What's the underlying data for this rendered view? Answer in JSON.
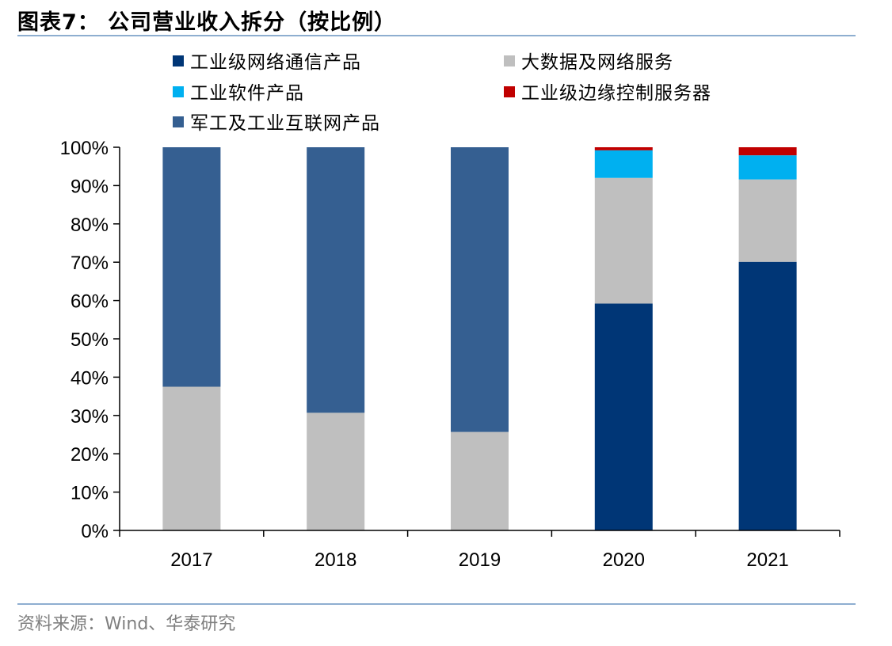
{
  "header": {
    "title": "图表7：  公司营业收入拆分（按比例）"
  },
  "footer": {
    "source": "资料来源：Wind、华泰研究"
  },
  "chart_data": {
    "type": "bar",
    "stacked": true,
    "categories": [
      "2017",
      "2018",
      "2019",
      "2020",
      "2021"
    ],
    "ylim": [
      0,
      100
    ],
    "ytick_step": 10,
    "ytick_suffix": "%",
    "legend_placement": "top",
    "series": [
      {
        "name": "工业级网络通信产品",
        "color": "#003676",
        "values": [
          0,
          0,
          0,
          59.2,
          70.1
        ]
      },
      {
        "name": "大数据及网络服务",
        "color": "#bfbfbf",
        "values": [
          37.5,
          30.7,
          25.7,
          32.8,
          21.5
        ]
      },
      {
        "name": "工业软件产品",
        "color": "#00b0f0",
        "values": [
          0,
          0,
          0,
          7.2,
          6.3
        ]
      },
      {
        "name": "工业级边缘控制服务器",
        "color": "#c00000",
        "values": [
          0,
          0,
          0,
          0.8,
          2.1
        ]
      },
      {
        "name": "军工及工业互联网产品",
        "color": "#355f91",
        "values": [
          62.5,
          69.3,
          74.3,
          0,
          0
        ]
      }
    ]
  }
}
